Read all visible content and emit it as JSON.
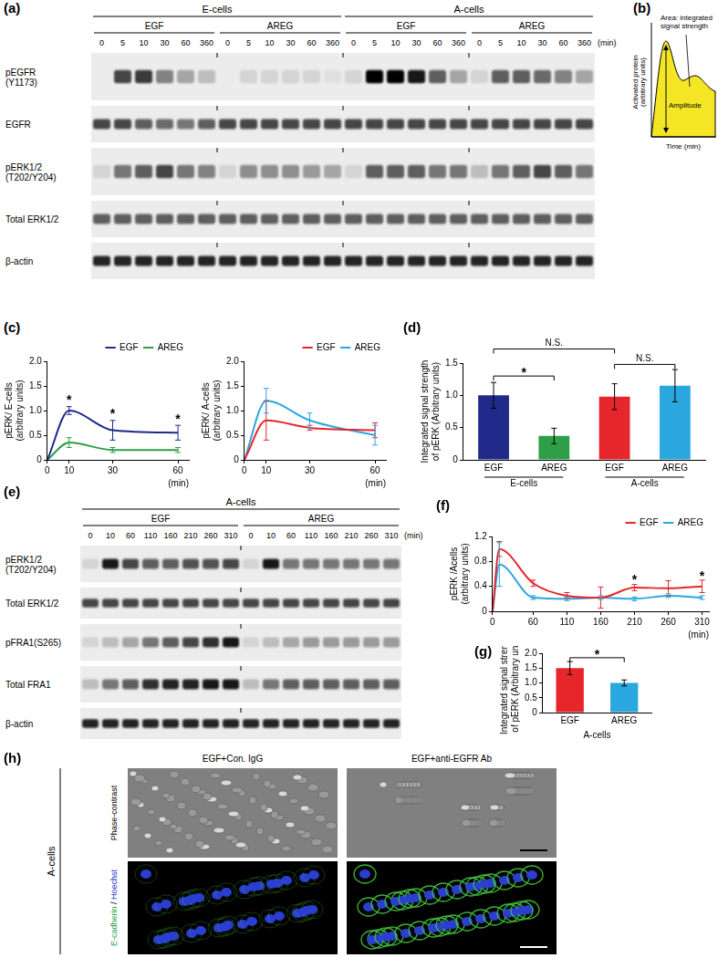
{
  "panel_labels": [
    "(a)",
    "(b)",
    "(c)",
    "(d)",
    "(e)",
    "(f)",
    "(g)",
    "(h)"
  ],
  "blot_a": {
    "groups": [
      {
        "label": "E-cells",
        "treatments": [
          "EGF",
          "AREG"
        ]
      },
      {
        "label": "A-cells",
        "treatments": [
          "EGF",
          "AREG"
        ]
      }
    ],
    "times": [
      0,
      5,
      10,
      30,
      60,
      360
    ],
    "time_unit": "(min)",
    "rows": [
      {
        "label": [
          "pEGFR",
          "(Y1173)"
        ],
        "band_intensity": [
          0,
          0.7,
          0.75,
          0.45,
          0.3,
          0.2,
          0,
          0.1,
          0.1,
          0.1,
          0.1,
          0.05,
          0.1,
          1,
          1,
          0.9,
          0.6,
          0.3,
          0.1,
          0.6,
          0.6,
          0.55,
          0.45,
          0.3
        ]
      },
      {
        "label": [
          "EGFR"
        ],
        "band_intensity": [
          0.7,
          0.7,
          0.6,
          0.55,
          0.5,
          0.6,
          0.7,
          0.7,
          0.7,
          0.7,
          0.7,
          0.7,
          0.7,
          0.7,
          0.7,
          0.7,
          0.7,
          0.7,
          0.7,
          0.7,
          0.7,
          0.7,
          0.7,
          0.7
        ]
      },
      {
        "label": [
          "pERK1/2",
          "(T202/Y204)"
        ],
        "band_intensity": [
          0.1,
          0.5,
          0.6,
          0.7,
          0.5,
          0.45,
          0.1,
          0.4,
          0.4,
          0.4,
          0.35,
          0.3,
          0.1,
          0.6,
          0.6,
          0.6,
          0.5,
          0.5,
          0.2,
          0.5,
          0.6,
          0.7,
          0.6,
          0.5
        ]
      },
      {
        "label": [
          "Total ERK1/2"
        ],
        "band_intensity": [
          0.6,
          0.6,
          0.6,
          0.6,
          0.6,
          0.6,
          0.6,
          0.6,
          0.6,
          0.6,
          0.6,
          0.6,
          0.6,
          0.6,
          0.6,
          0.6,
          0.6,
          0.6,
          0.6,
          0.6,
          0.6,
          0.6,
          0.6,
          0.6
        ]
      },
      {
        "label": [
          "β-actin"
        ],
        "band_intensity": [
          0.85,
          0.85,
          0.85,
          0.85,
          0.85,
          0.85,
          0.85,
          0.85,
          0.85,
          0.85,
          0.85,
          0.85,
          0.85,
          0.85,
          0.85,
          0.85,
          0.85,
          0.85,
          0.85,
          0.85,
          0.85,
          0.85,
          0.85,
          0.85
        ]
      }
    ]
  },
  "schematic_b": {
    "y_label": [
      "Activated protein",
      "(arbitrary units)"
    ],
    "x_label": "Time (min)",
    "area_label": [
      "Area: integrated",
      "signal strength"
    ],
    "amplitude_label": "Amplitude"
  },
  "chart_data": [
    {
      "type": "line",
      "x": [
        0,
        10,
        30,
        60
      ],
      "xlim": [
        0,
        65
      ],
      "xticks": [
        0,
        10,
        30,
        60
      ],
      "x_label": "(min)",
      "ylim": [
        0,
        2
      ],
      "yticks": [
        0,
        0.5,
        {
          "value": 1,
          "label": "1.0"
        },
        1.5,
        {
          "value": 2,
          "label": "2.0"
        }
      ],
      "y_label": [
        "pERK/ E-cells",
        "(arbitrary units)"
      ],
      "grid": false,
      "legend": "upper right",
      "series": [
        {
          "name": "EGF",
          "color": "#1f2a8a",
          "values": [
            0,
            1.0,
            0.6,
            0.55
          ],
          "errors": [
            null,
            0.08,
            0.2,
            0.15
          ]
        },
        {
          "name": "AREG",
          "color": "#2e9e48",
          "values": [
            0,
            0.35,
            0.2,
            0.2
          ],
          "errors": [
            null,
            0.1,
            0.05,
            0.05
          ]
        }
      ],
      "annotations": [
        {
          "text": "*",
          "x": 10,
          "y": 1.2
        },
        {
          "text": "*",
          "x": 30,
          "y": 0.92
        },
        {
          "text": "*",
          "x": 60,
          "y": 0.82
        }
      ]
    },
    {
      "type": "line",
      "x": [
        0,
        10,
        30,
        60
      ],
      "xlim": [
        0,
        65
      ],
      "xticks": [
        0,
        10,
        30,
        60
      ],
      "x_label": "(min)",
      "ylim": [
        0,
        2
      ],
      "yticks": [
        0,
        0.5,
        {
          "value": 1,
          "label": "1.0"
        },
        1.5,
        {
          "value": 2,
          "label": "2.0"
        }
      ],
      "y_label": [
        "pERK/ A-cells",
        "(arbitrary units)"
      ],
      "grid": false,
      "legend": "upper right",
      "series": [
        {
          "name": "EGF",
          "color": "#e6262b",
          "values": [
            0,
            0.8,
            0.65,
            0.6
          ],
          "errors": [
            null,
            0.4,
            0.05,
            0.15
          ]
        },
        {
          "name": "AREG",
          "color": "#2aa7df",
          "values": [
            0,
            1.2,
            0.8,
            0.5
          ],
          "errors": [
            null,
            0.25,
            0.15,
            0.2
          ]
        }
      ]
    },
    {
      "type": "bar",
      "categories": [
        "EGF",
        "AREG",
        "EGF",
        "AREG"
      ],
      "groups": [
        {
          "label": "E-cells",
          "categories": [
            "EGF",
            "AREG"
          ]
        },
        {
          "label": "A-cells",
          "categories": [
            "EGF",
            "AREG"
          ]
        }
      ],
      "values": [
        1.0,
        0.37,
        0.98,
        1.15
      ],
      "errors": [
        0.2,
        0.12,
        0.2,
        0.25
      ],
      "colors": [
        "#1f2a8a",
        "#2e9e48",
        "#e6262b",
        "#2aa7df"
      ],
      "ylim": [
        0,
        1.5
      ],
      "yticks": [
        0,
        0.5,
        {
          "value": 1,
          "label": "1.0"
        },
        1.5
      ],
      "y_label": [
        "Integrated signal strength",
        "of pERK (Arbitrary units)"
      ],
      "grid": false,
      "brackets": [
        {
          "from": 0,
          "to": 1,
          "y": 1.3,
          "label": "*"
        },
        {
          "from": 2,
          "to": 3,
          "y": 1.48,
          "label": "N.S."
        },
        {
          "from": 0,
          "to": 2,
          "y": 1.72,
          "label": "N.S."
        }
      ]
    },
    {
      "type": "line",
      "x": [
        0,
        10,
        60,
        110,
        160,
        210,
        260,
        310
      ],
      "xlim": [
        0,
        320
      ],
      "xticks": [
        0,
        60,
        110,
        160,
        210,
        260,
        310
      ],
      "x_label": "(min)",
      "ylim": [
        0,
        1.2
      ],
      "yticks": [
        0,
        0.4,
        0.8,
        1.2
      ],
      "y_label": [
        "pERK /Acells",
        "(arbitrary units)"
      ],
      "grid": false,
      "legend": "upper right",
      "series": [
        {
          "name": "EGF",
          "color": "#e6262b",
          "values": [
            0,
            1.0,
            0.45,
            0.25,
            0.22,
            0.38,
            0.37,
            0.4
          ],
          "errors": [
            null,
            0.12,
            0.05,
            0.05,
            0.17,
            0.05,
            0.12,
            0.1
          ]
        },
        {
          "name": "AREG",
          "color": "#2aa7df",
          "values": [
            0,
            0.75,
            0.22,
            0.2,
            0.22,
            0.2,
            0.25,
            0.22
          ],
          "errors": [
            null,
            0.35,
            0.03,
            0.03,
            0.03,
            0.03,
            0.03,
            0.03
          ]
        }
      ],
      "annotations": [
        {
          "text": "*",
          "x": 210,
          "y": 0.5
        },
        {
          "text": "*",
          "x": 310,
          "y": 0.56
        }
      ]
    },
    {
      "type": "bar",
      "categories": [
        "EGF",
        "AREG"
      ],
      "x_label": "A-cells",
      "values": [
        1.5,
        1.0
      ],
      "errors": [
        0.22,
        0.1
      ],
      "colors": [
        "#e6262b",
        "#2aa7df"
      ],
      "ylim": [
        0,
        2
      ],
      "yticks": [
        0,
        0.5,
        {
          "value": 1,
          "label": "1.0"
        },
        1.5,
        {
          "value": 2,
          "label": "2.0"
        }
      ],
      "y_label": [
        "Integrated signal strength",
        "of pERK (Arbitrary units)"
      ],
      "grid": false,
      "brackets": [
        {
          "from": 0,
          "to": 1,
          "y": 1.85,
          "label": "*"
        }
      ]
    }
  ],
  "blot_e": {
    "groups": [
      {
        "label": "A-cells",
        "treatments": [
          "EGF",
          "AREG"
        ]
      }
    ],
    "times": [
      0,
      10,
      60,
      110,
      160,
      210,
      260,
      310
    ],
    "time_unit": "(min)",
    "rows": [
      {
        "label": [
          "pERK1/2",
          "(T202/Y204)"
        ],
        "band_intensity": [
          0.1,
          0.9,
          0.7,
          0.6,
          0.6,
          0.65,
          0.65,
          0.7,
          0.1,
          0.9,
          0.5,
          0.5,
          0.5,
          0.5,
          0.5,
          0.5
        ]
      },
      {
        "label": [
          "Total ERK1/2"
        ],
        "band_intensity": [
          0.7,
          0.7,
          0.7,
          0.7,
          0.7,
          0.7,
          0.7,
          0.7,
          0.7,
          0.7,
          0.7,
          0.7,
          0.7,
          0.7,
          0.7,
          0.7
        ]
      },
      {
        "label": [
          "pFRA1(S265)"
        ],
        "band_intensity": [
          0.1,
          0.2,
          0.3,
          0.5,
          0.6,
          0.7,
          0.8,
          0.9,
          0.1,
          0.2,
          0.3,
          0.35,
          0.35,
          0.35,
          0.35,
          0.35
        ]
      },
      {
        "label": [
          "Total FRA1"
        ],
        "band_intensity": [
          0.2,
          0.5,
          0.6,
          0.8,
          0.85,
          0.85,
          0.9,
          0.9,
          0.2,
          0.5,
          0.6,
          0.6,
          0.6,
          0.6,
          0.6,
          0.6
        ]
      },
      {
        "label": [
          "β-actin"
        ],
        "band_intensity": [
          0.85,
          0.85,
          0.85,
          0.85,
          0.85,
          0.85,
          0.85,
          0.85,
          0.85,
          0.85,
          0.85,
          0.85,
          0.85,
          0.85,
          0.85,
          0.85
        ]
      }
    ]
  },
  "images_h": {
    "row_group": "A-cells",
    "columns": [
      "EGF+Con. IgG",
      "EGF+anti-EGFR Ab"
    ],
    "rows": [
      {
        "label": [
          {
            "text": "Phase-contrast",
            "color": "#000000"
          }
        ]
      },
      {
        "label": [
          {
            "text": "E-cadherin",
            "color": "#2e9e48"
          },
          {
            "text": " / ",
            "color": "#000000"
          },
          {
            "text": "Hoechst",
            "color": "#2233cc"
          }
        ]
      }
    ]
  }
}
